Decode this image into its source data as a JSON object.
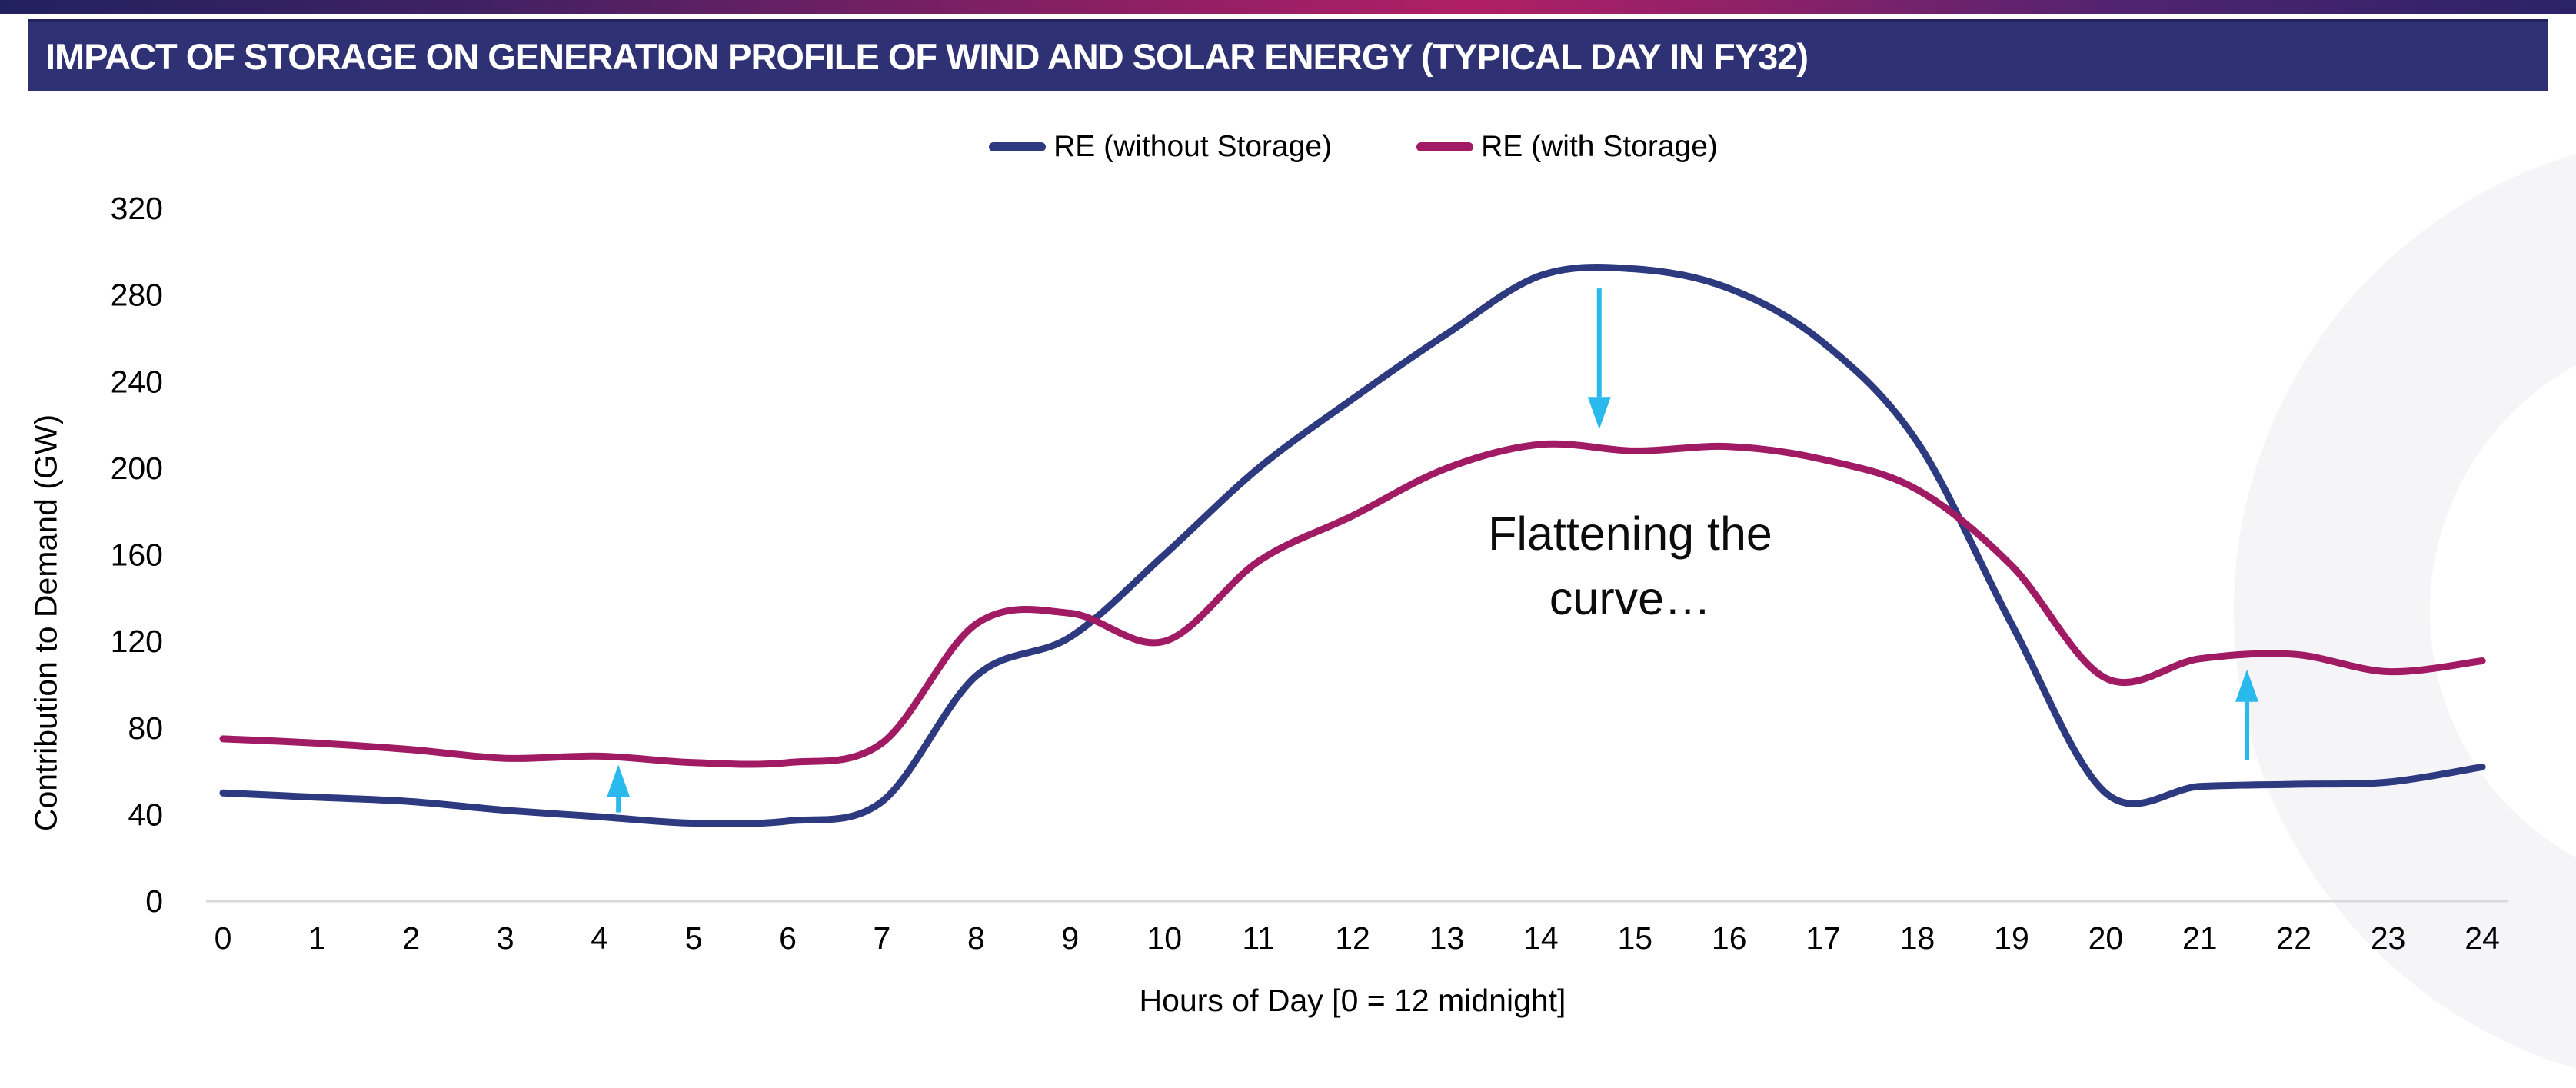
{
  "page": {
    "title": "IMPACT OF STORAGE ON GENERATION PROFILE OF WIND AND SOLAR ENERGY (TYPICAL DAY IN FY32)"
  },
  "colors": {
    "title_bar_bg": "#2E3274",
    "axis_line": "#D9D9D9",
    "tick_text": "#000000",
    "annotation_arrow": "#29B9EC",
    "watermark": "#F5F5F7"
  },
  "chart_data": {
    "type": "line",
    "title": "",
    "xlabel": "Hours of Day [0 = 12 midnight]",
    "ylabel": "Contribution to Demand (GW)",
    "x": [
      0,
      1,
      2,
      3,
      4,
      5,
      6,
      7,
      8,
      9,
      10,
      11,
      12,
      13,
      14,
      15,
      16,
      17,
      18,
      19,
      20,
      21,
      22,
      23,
      24
    ],
    "xticks": [
      0,
      1,
      2,
      3,
      4,
      5,
      6,
      7,
      8,
      9,
      10,
      11,
      12,
      13,
      14,
      15,
      16,
      17,
      18,
      19,
      20,
      21,
      22,
      23,
      24
    ],
    "yticks": [
      0,
      40,
      80,
      120,
      160,
      200,
      240,
      280,
      320
    ],
    "ylim": [
      0,
      320
    ],
    "grid": false,
    "legend_position": "top-center",
    "series": [
      {
        "name": "RE (without Storage)",
        "color": "#2E3A80",
        "values": [
          50,
          48,
          46,
          42,
          39,
          36,
          37,
          46,
          104,
          122,
          160,
          200,
          232,
          262,
          289,
          292,
          283,
          258,
          212,
          128,
          50,
          53,
          54,
          55,
          62
        ]
      },
      {
        "name": "RE (with Storage)",
        "color": "#A01B63",
        "values": [
          75,
          73,
          70,
          66,
          67,
          64,
          64,
          73,
          128,
          133,
          120,
          157,
          178,
          200,
          211,
          208,
          210,
          204,
          190,
          155,
          103,
          112,
          114,
          106,
          111
        ]
      }
    ],
    "annotation": {
      "line1": "Flattening the",
      "line2": "curve…"
    },
    "arrows": [
      {
        "hour": 4.2,
        "from_gw": 41,
        "to_gw": 63,
        "direction": "up"
      },
      {
        "hour": 14.62,
        "from_gw": 283,
        "to_gw": 218,
        "direction": "down"
      },
      {
        "hour": 21.5,
        "from_gw": 65,
        "to_gw": 107,
        "direction": "up"
      }
    ]
  }
}
